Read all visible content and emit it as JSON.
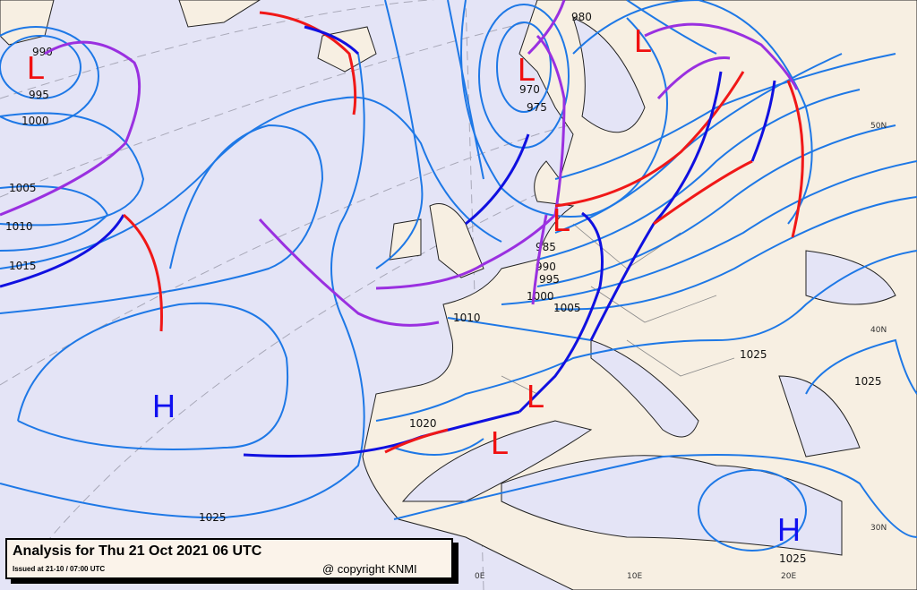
{
  "caption": {
    "title": "Analysis for Thu 21 Oct 2021 06 UTC",
    "issued": "Issued at 21-10 / 07:00 UTC",
    "copyright": "@ copyright KNMI"
  },
  "colors": {
    "sea": "#e4e4f6",
    "land": "#f7efe2",
    "isobar": "#1e78e6",
    "cold_front": "#1010e0",
    "warm_front": "#f01818",
    "occluded_front": "#9a30e0",
    "low": "#f01010",
    "high": "#1010f0"
  },
  "pressure_centers": [
    {
      "type": "L",
      "label": "L"
    },
    {
      "type": "L",
      "label": "L"
    },
    {
      "type": "L",
      "label": "L"
    },
    {
      "type": "L",
      "label": "L"
    },
    {
      "type": "L",
      "label": "L"
    },
    {
      "type": "L",
      "label": "L"
    },
    {
      "type": "H",
      "label": "H"
    },
    {
      "type": "H",
      "label": "H"
    }
  ],
  "isobar_labels": [
    "990",
    "995",
    "1000",
    "1005",
    "1010",
    "1015",
    "980",
    "970",
    "975",
    "985",
    "990",
    "995",
    "1000",
    "1005",
    "1010",
    "1020",
    "1025",
    "1025",
    "1025",
    "1025"
  ],
  "grid_labels": [
    "50N",
    "40N",
    "30N",
    "0E",
    "10E",
    "20E"
  ]
}
